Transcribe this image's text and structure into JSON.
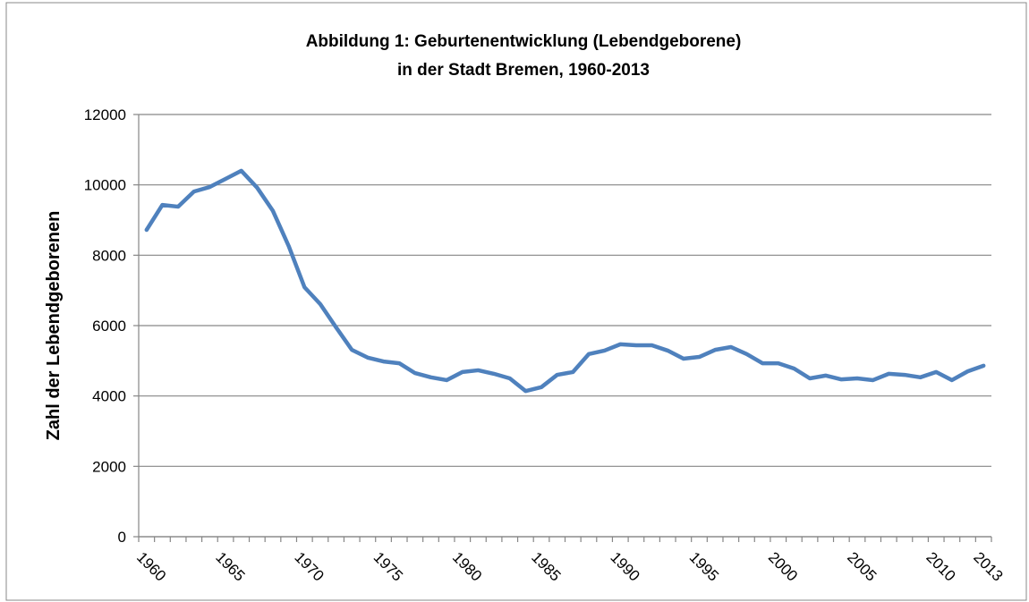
{
  "chart_data": {
    "type": "line",
    "title": [
      "Abbildung 1: Geburtenentwicklung (Lebendgeborene)",
      "in der Stadt Bremen, 1960-2013"
    ],
    "y_label": "Zahl der Lebendgeborenen",
    "categories": [
      "1960",
      null,
      null,
      null,
      null,
      "1965",
      null,
      null,
      null,
      null,
      "1970",
      null,
      null,
      null,
      null,
      "1975",
      null,
      null,
      null,
      null,
      "1980",
      null,
      null,
      null,
      null,
      "1985",
      null,
      null,
      null,
      null,
      "1990",
      null,
      null,
      null,
      null,
      "1995",
      null,
      null,
      null,
      null,
      "2000",
      null,
      null,
      null,
      null,
      "2005",
      null,
      null,
      null,
      null,
      "2010",
      null,
      null,
      "2013"
    ],
    "series": [
      {
        "color": "#4f81bd",
        "values": [
          8720,
          9430,
          9380,
          9810,
          9940,
          10170,
          10400,
          9920,
          9260,
          8260,
          7090,
          6610,
          5950,
          5310,
          5090,
          4980,
          4930,
          4650,
          4530,
          4450,
          4680,
          4730,
          4630,
          4500,
          4140,
          4250,
          4600,
          4680,
          5190,
          5290,
          5470,
          5440,
          5440,
          5290,
          5060,
          5110,
          5310,
          5390,
          5190,
          4930,
          4930,
          4780,
          4500,
          4580,
          4470,
          4500,
          4450,
          4630,
          4600,
          4530,
          4680,
          4450,
          4700,
          4860
        ]
      }
    ],
    "ylim": [
      0,
      12000
    ],
    "yticks": [
      0,
      2000,
      4000,
      6000,
      8000,
      10000,
      12000
    ],
    "grid": true
  }
}
